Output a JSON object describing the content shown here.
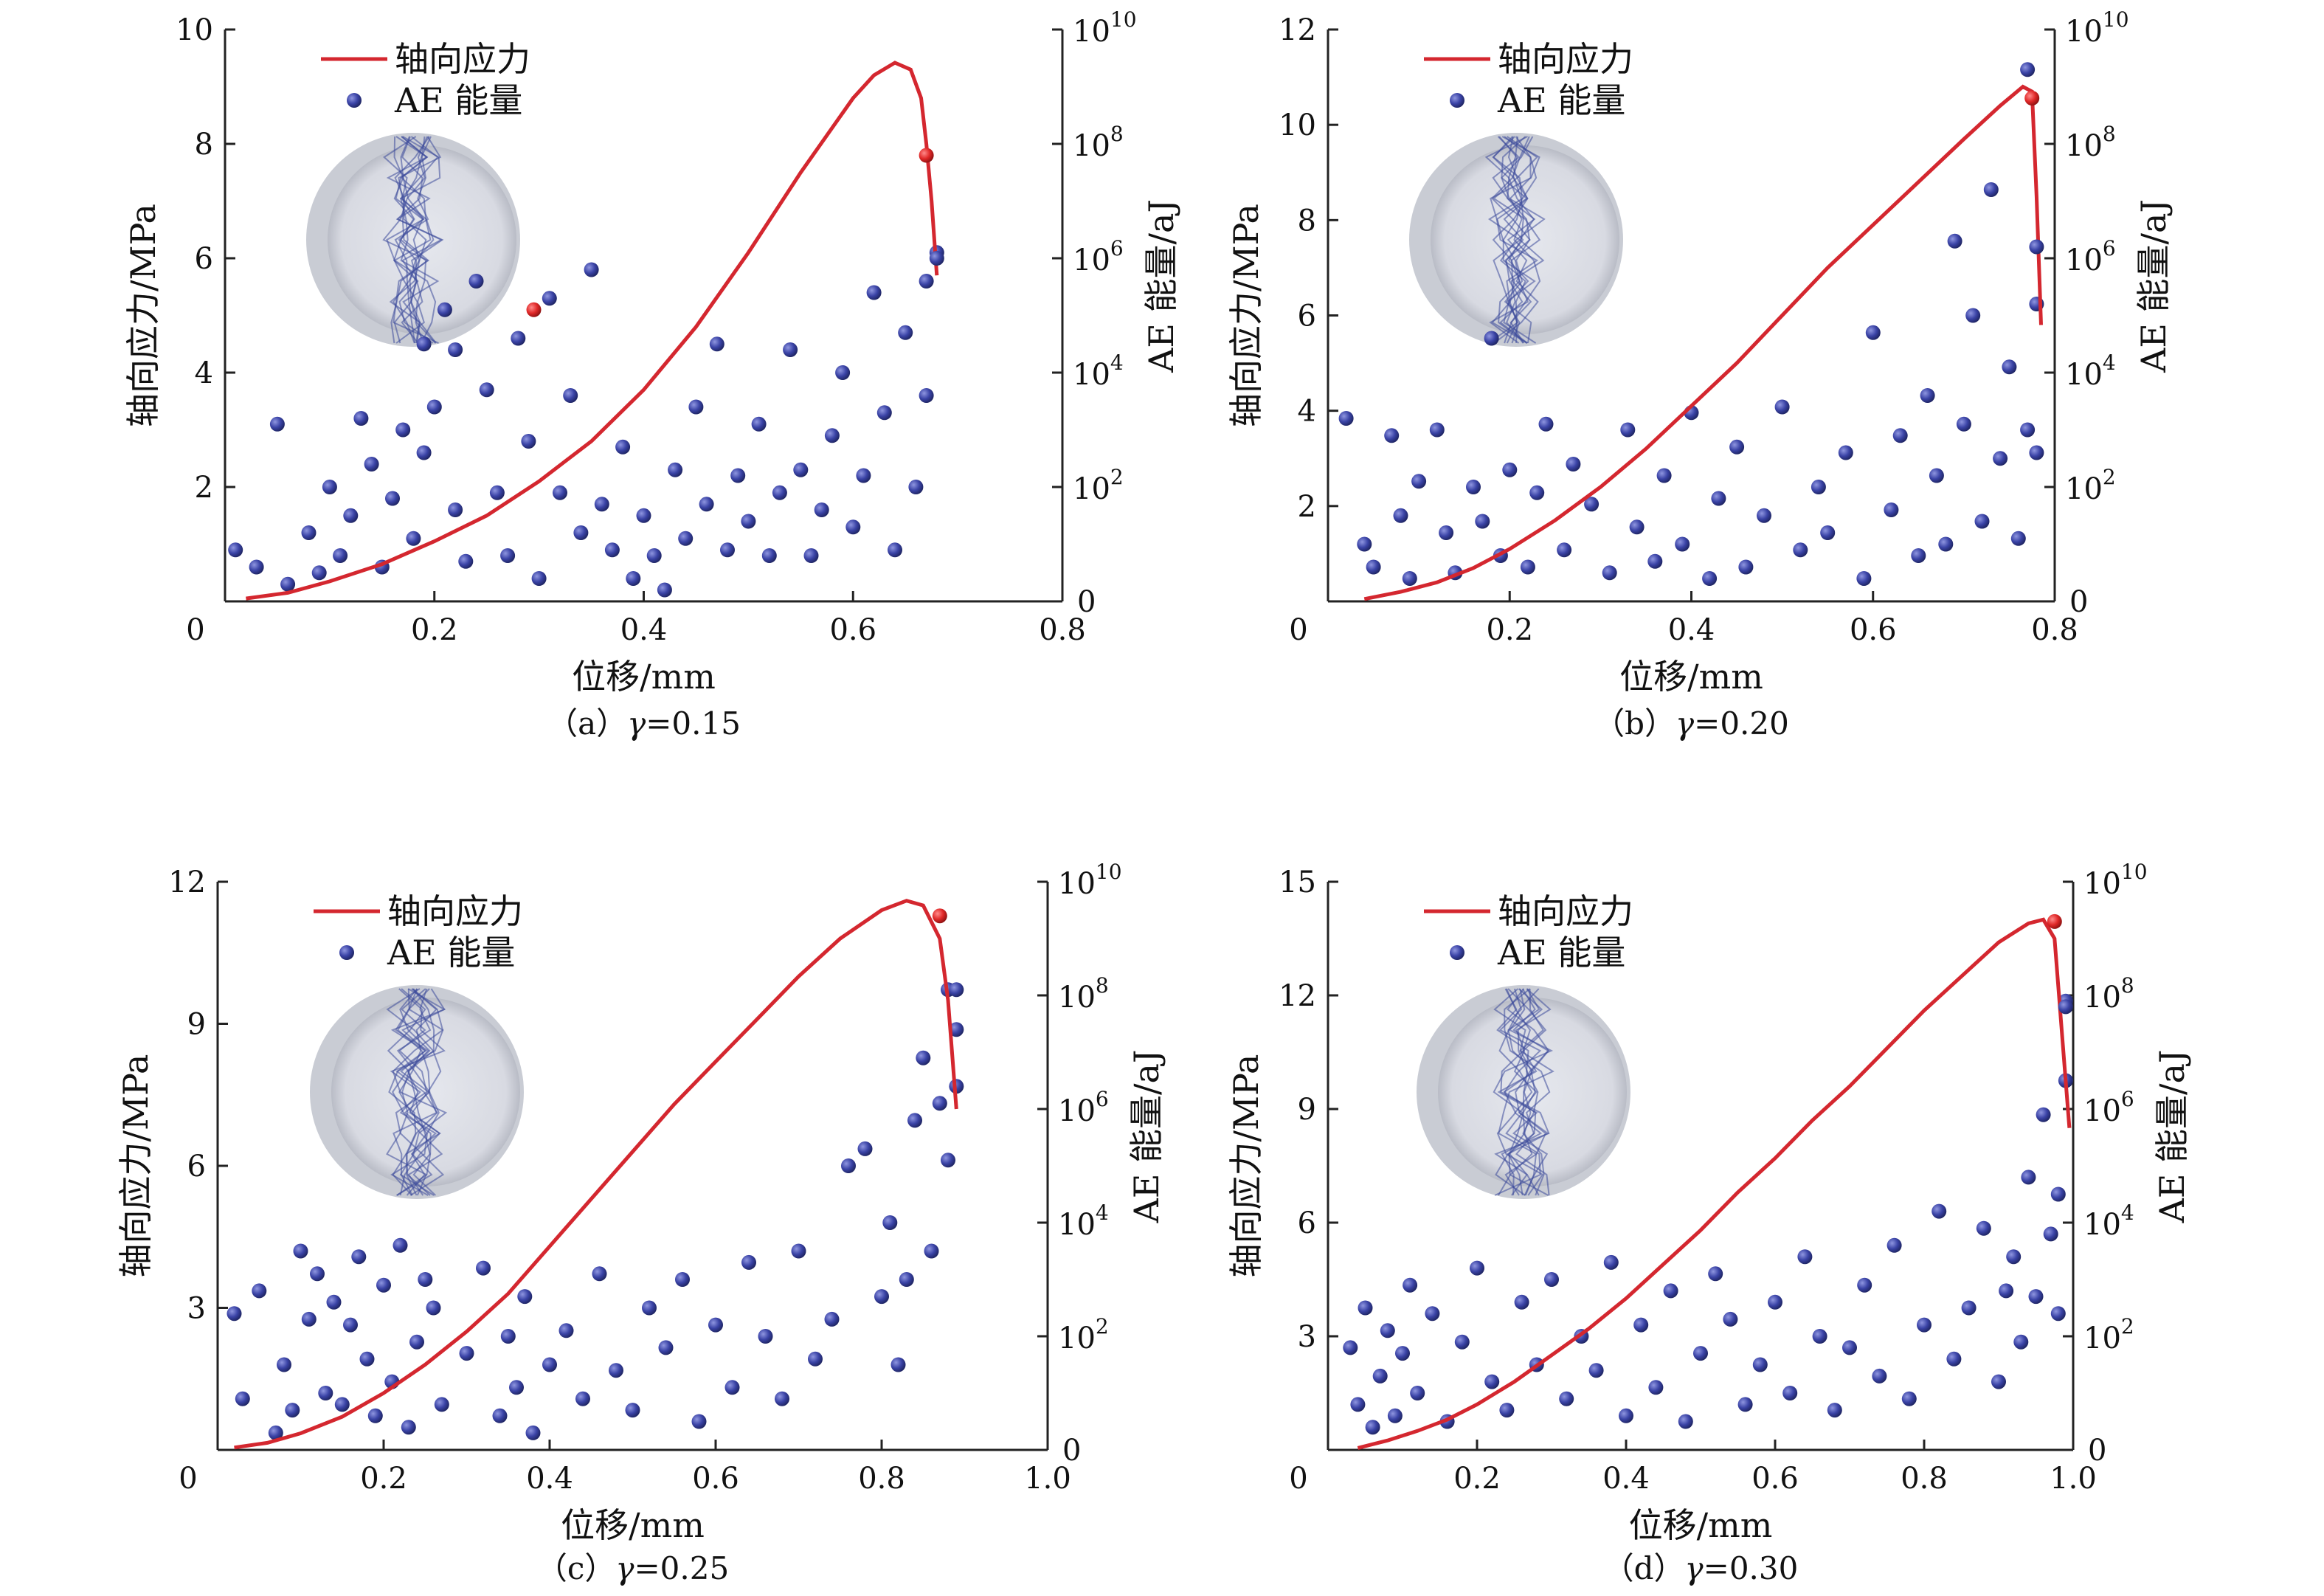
{
  "figure": {
    "panel_count": 4
  },
  "chart_data": [
    {
      "id": "a",
      "type": "line+scatter",
      "caption_prefix": "（a）",
      "caption_symbol": "γ",
      "caption_value": "=0.15",
      "xlabel": "位移/mm",
      "ylabel": "轴向应力/MPa",
      "ylabel_right": "AE 能量/aJ",
      "legend": [
        "轴向应力",
        "AE 能量"
      ],
      "xlim": [
        0,
        0.8
      ],
      "ylim": [
        0,
        10
      ],
      "xticks": [
        "0",
        "0.2",
        "0.4",
        "0.6",
        "0.8"
      ],
      "yticks": [
        "10",
        "8",
        "6",
        "4",
        "2"
      ],
      "y2_exponents": [
        "10",
        "8",
        "6",
        "4",
        "2"
      ],
      "y2_zero": "0",
      "y2lim_log10": [
        0,
        10
      ],
      "series": [
        {
          "name": "轴向应力",
          "type": "line",
          "color": "#d4272f",
          "x": [
            0.02,
            0.06,
            0.1,
            0.15,
            0.2,
            0.25,
            0.3,
            0.35,
            0.4,
            0.45,
            0.5,
            0.55,
            0.6,
            0.62,
            0.64,
            0.655,
            0.665,
            0.67,
            0.675,
            0.68
          ],
          "y": [
            0.05,
            0.15,
            0.35,
            0.65,
            1.05,
            1.5,
            2.1,
            2.8,
            3.7,
            4.8,
            6.1,
            7.5,
            8.8,
            9.2,
            9.42,
            9.3,
            8.8,
            8.0,
            7.0,
            5.7
          ]
        },
        {
          "name": "AE 能量",
          "type": "scatter",
          "color": "#3b449c",
          "unit": "log10(aJ)",
          "x": [
            0.01,
            0.03,
            0.05,
            0.06,
            0.08,
            0.09,
            0.1,
            0.11,
            0.12,
            0.13,
            0.14,
            0.15,
            0.16,
            0.17,
            0.18,
            0.19,
            0.19,
            0.2,
            0.21,
            0.22,
            0.22,
            0.23,
            0.24,
            0.25,
            0.26,
            0.27,
            0.28,
            0.29,
            0.3,
            0.31,
            0.32,
            0.33,
            0.34,
            0.35,
            0.36,
            0.37,
            0.38,
            0.39,
            0.4,
            0.41,
            0.42,
            0.43,
            0.44,
            0.45,
            0.46,
            0.47,
            0.48,
            0.49,
            0.5,
            0.51,
            0.52,
            0.53,
            0.54,
            0.55,
            0.56,
            0.57,
            0.58,
            0.59,
            0.6,
            0.61,
            0.62,
            0.63,
            0.64,
            0.65,
            0.66,
            0.67,
            0.67,
            0.68
          ],
          "y": [
            0.9,
            0.6,
            3.1,
            0.3,
            1.2,
            0.5,
            2.0,
            0.8,
            1.5,
            3.2,
            2.4,
            0.6,
            1.8,
            3.0,
            1.1,
            4.5,
            2.6,
            3.4,
            5.1,
            1.6,
            4.4,
            0.7,
            5.6,
            3.7,
            1.9,
            0.8,
            4.6,
            2.8,
            0.4,
            5.3,
            1.9,
            3.6,
            1.2,
            5.8,
            1.7,
            0.9,
            2.7,
            0.4,
            1.5,
            0.8,
            0.2,
            2.3,
            1.1,
            3.4,
            1.7,
            4.5,
            0.9,
            2.2,
            1.4,
            3.1,
            0.8,
            1.9,
            4.4,
            2.3,
            0.8,
            1.6,
            2.9,
            4.0,
            1.3,
            2.2,
            5.4,
            3.3,
            0.9,
            4.7,
            2.0,
            3.6,
            5.6,
            6.1
          ]
        }
      ],
      "highlight_points": [
        {
          "x": 0.295,
          "y2_log10": 5.1,
          "color": "#d4272f"
        },
        {
          "x": 0.67,
          "y2_log10": 7.8,
          "color": "#d4272f"
        },
        {
          "x": 0.68,
          "y2_log10": 6.0,
          "color": "#3b449c"
        }
      ]
    },
    {
      "id": "b",
      "type": "line+scatter",
      "caption_prefix": "（b）",
      "caption_symbol": "γ",
      "caption_value": "=0.20",
      "xlabel": "位移/mm",
      "ylabel": "轴向应力/MPa",
      "ylabel_right": "AE 能量/aJ",
      "legend": [
        "轴向应力",
        "AE 能量"
      ],
      "xlim": [
        0,
        0.8
      ],
      "ylim": [
        0,
        12
      ],
      "xticks": [
        "0",
        "0.2",
        "0.4",
        "0.6",
        "0.8"
      ],
      "yticks": [
        "12",
        "10",
        "8",
        "6",
        "4",
        "2"
      ],
      "y2_exponents": [
        "10",
        "8",
        "6",
        "4",
        "2"
      ],
      "y2_zero": "0",
      "y2lim_log10": [
        0,
        10
      ],
      "series": [
        {
          "name": "轴向应力",
          "type": "line",
          "color": "#d4272f",
          "x": [
            0.04,
            0.08,
            0.12,
            0.16,
            0.2,
            0.25,
            0.3,
            0.35,
            0.4,
            0.45,
            0.5,
            0.55,
            0.6,
            0.65,
            0.7,
            0.74,
            0.765,
            0.775,
            0.78,
            0.785
          ],
          "y": [
            0.05,
            0.2,
            0.4,
            0.7,
            1.1,
            1.7,
            2.4,
            3.2,
            4.1,
            5.0,
            6.0,
            7.0,
            7.9,
            8.8,
            9.7,
            10.4,
            10.8,
            10.7,
            8.5,
            5.8
          ]
        },
        {
          "name": "AE 能量",
          "type": "scatter",
          "color": "#3b449c",
          "unit": "log10(aJ)",
          "x": [
            0.02,
            0.04,
            0.05,
            0.07,
            0.08,
            0.09,
            0.1,
            0.12,
            0.13,
            0.14,
            0.16,
            0.17,
            0.18,
            0.19,
            0.2,
            0.22,
            0.23,
            0.24,
            0.26,
            0.27,
            0.29,
            0.31,
            0.33,
            0.34,
            0.36,
            0.37,
            0.39,
            0.4,
            0.42,
            0.43,
            0.45,
            0.46,
            0.48,
            0.5,
            0.52,
            0.54,
            0.55,
            0.57,
            0.59,
            0.6,
            0.62,
            0.63,
            0.65,
            0.66,
            0.67,
            0.68,
            0.69,
            0.7,
            0.71,
            0.72,
            0.73,
            0.74,
            0.75,
            0.76,
            0.77,
            0.77,
            0.78,
            0.78
          ],
          "y": [
            3.2,
            1.0,
            0.6,
            2.9,
            1.5,
            0.4,
            2.1,
            3.0,
            1.2,
            0.5,
            2.0,
            1.4,
            4.6,
            0.8,
            2.3,
            0.6,
            1.9,
            3.1,
            0.9,
            2.4,
            1.7,
            0.5,
            3.0,
            1.3,
            0.7,
            2.2,
            1.0,
            3.3,
            0.4,
            1.8,
            2.7,
            0.6,
            1.5,
            3.4,
            0.9,
            2.0,
            1.2,
            2.6,
            0.4,
            4.7,
            1.6,
            2.9,
            0.8,
            3.6,
            2.2,
            1.0,
            6.3,
            3.1,
            5.0,
            1.4,
            7.2,
            2.5,
            4.1,
            1.1,
            9.3,
            3.0,
            5.2,
            2.6
          ]
        }
      ],
      "highlight_points": [
        {
          "x": 0.775,
          "y2_log10": 8.8,
          "color": "#d4272f"
        },
        {
          "x": 0.78,
          "y2_log10": 6.2,
          "color": "#3b449c"
        }
      ]
    },
    {
      "id": "c",
      "type": "line+scatter",
      "caption_prefix": "（c）",
      "caption_symbol": "γ",
      "caption_value": "=0.25",
      "xlabel": "位移/mm",
      "ylabel": "轴向应力/MPa",
      "ylabel_right": "AE 能量/aJ",
      "legend": [
        "轴向应力",
        "AE 能量"
      ],
      "xlim": [
        0,
        1.0
      ],
      "ylim": [
        0,
        12
      ],
      "xticks": [
        "0",
        "0.2",
        "0.4",
        "0.6",
        "0.8",
        "1.0"
      ],
      "yticks": [
        "12",
        "9",
        "6",
        "3"
      ],
      "y2_exponents": [
        "10",
        "8",
        "6",
        "4",
        "2"
      ],
      "y2_zero": "0",
      "y2lim_log10": [
        0,
        10
      ],
      "series": [
        {
          "name": "轴向应力",
          "type": "line",
          "color": "#d4272f",
          "x": [
            0.02,
            0.06,
            0.1,
            0.15,
            0.2,
            0.25,
            0.3,
            0.35,
            0.4,
            0.45,
            0.5,
            0.55,
            0.6,
            0.65,
            0.7,
            0.75,
            0.8,
            0.83,
            0.85,
            0.87,
            0.88,
            0.89
          ],
          "y": [
            0.05,
            0.15,
            0.35,
            0.7,
            1.2,
            1.8,
            2.5,
            3.3,
            4.3,
            5.3,
            6.3,
            7.3,
            8.2,
            9.1,
            10.0,
            10.8,
            11.4,
            11.6,
            11.5,
            10.8,
            9.5,
            7.2
          ]
        },
        {
          "name": "AE 能量",
          "type": "scatter",
          "color": "#3b449c",
          "unit": "log10(aJ)",
          "x": [
            0.02,
            0.03,
            0.05,
            0.07,
            0.08,
            0.09,
            0.1,
            0.11,
            0.12,
            0.13,
            0.14,
            0.15,
            0.16,
            0.17,
            0.18,
            0.19,
            0.2,
            0.21,
            0.22,
            0.23,
            0.24,
            0.25,
            0.26,
            0.27,
            0.3,
            0.32,
            0.34,
            0.35,
            0.36,
            0.37,
            0.38,
            0.4,
            0.42,
            0.44,
            0.46,
            0.48,
            0.5,
            0.52,
            0.54,
            0.56,
            0.58,
            0.6,
            0.62,
            0.64,
            0.66,
            0.68,
            0.7,
            0.72,
            0.74,
            0.76,
            0.78,
            0.8,
            0.81,
            0.82,
            0.83,
            0.84,
            0.85,
            0.86,
            0.87,
            0.88,
            0.88,
            0.89,
            0.89
          ],
          "y": [
            2.4,
            0.9,
            2.8,
            0.3,
            1.5,
            0.7,
            3.5,
            2.3,
            3.1,
            1.0,
            2.6,
            0.8,
            2.2,
            3.4,
            1.6,
            0.6,
            2.9,
            1.2,
            3.6,
            0.4,
            1.9,
            3.0,
            2.5,
            0.8,
            1.7,
            3.2,
            0.6,
            2.0,
            1.1,
            2.7,
            0.3,
            1.5,
            2.1,
            0.9,
            3.1,
            1.4,
            0.7,
            2.5,
            1.8,
            3.0,
            0.5,
            2.2,
            1.1,
            3.3,
            2.0,
            0.9,
            3.5,
            1.6,
            2.3,
            5.0,
            5.3,
            2.7,
            4.0,
            1.5,
            3.0,
            5.8,
            6.9,
            3.5,
            6.1,
            5.1,
            8.1,
            7.4,
            6.4
          ]
        }
      ],
      "highlight_points": [
        {
          "x": 0.87,
          "y2_log10": 9.4,
          "color": "#d4272f"
        },
        {
          "x": 0.89,
          "y2_log10": 8.1,
          "color": "#3b449c"
        }
      ]
    },
    {
      "id": "d",
      "type": "line+scatter",
      "caption_prefix": "（d）",
      "caption_symbol": "γ",
      "caption_value": "=0.30",
      "xlabel": "位移/mm",
      "ylabel": "轴向应力/MPa",
      "ylabel_right": "AE 能量/aJ",
      "legend": [
        "轴向应力",
        "AE 能量"
      ],
      "xlim": [
        0,
        1.0
      ],
      "ylim": [
        0,
        15
      ],
      "xticks": [
        "0",
        "0.2",
        "0.4",
        "0.6",
        "0.8",
        "1.0"
      ],
      "yticks": [
        "15",
        "12",
        "9",
        "6",
        "3"
      ],
      "y2_exponents": [
        "10",
        "8",
        "6",
        "4",
        "2"
      ],
      "y2_zero": "0",
      "y2lim_log10": [
        0,
        10
      ],
      "series": [
        {
          "name": "轴向应力",
          "type": "line",
          "color": "#d4272f",
          "x": [
            0.04,
            0.08,
            0.12,
            0.16,
            0.2,
            0.25,
            0.3,
            0.35,
            0.4,
            0.45,
            0.5,
            0.55,
            0.6,
            0.65,
            0.7,
            0.75,
            0.8,
            0.85,
            0.9,
            0.94,
            0.96,
            0.975,
            0.985,
            0.995
          ],
          "y": [
            0.05,
            0.25,
            0.5,
            0.8,
            1.2,
            1.8,
            2.5,
            3.2,
            4.0,
            4.9,
            5.8,
            6.8,
            7.7,
            8.7,
            9.6,
            10.6,
            11.6,
            12.5,
            13.4,
            13.9,
            14.0,
            13.5,
            11.0,
            8.5
          ]
        },
        {
          "name": "AE 能量",
          "type": "scatter",
          "color": "#3b449c",
          "unit": "log10(aJ)",
          "x": [
            0.03,
            0.04,
            0.05,
            0.06,
            0.07,
            0.08,
            0.09,
            0.1,
            0.11,
            0.12,
            0.14,
            0.16,
            0.18,
            0.2,
            0.22,
            0.24,
            0.26,
            0.28,
            0.3,
            0.32,
            0.34,
            0.36,
            0.38,
            0.4,
            0.42,
            0.44,
            0.46,
            0.48,
            0.5,
            0.52,
            0.54,
            0.56,
            0.58,
            0.6,
            0.62,
            0.64,
            0.66,
            0.68,
            0.7,
            0.72,
            0.74,
            0.76,
            0.78,
            0.8,
            0.82,
            0.84,
            0.86,
            0.88,
            0.9,
            0.91,
            0.92,
            0.93,
            0.94,
            0.95,
            0.96,
            0.97,
            0.98,
            0.98,
            0.99,
            0.99
          ],
          "y": [
            1.8,
            0.8,
            2.5,
            0.4,
            1.3,
            2.1,
            0.6,
            1.7,
            2.9,
            1.0,
            2.4,
            0.5,
            1.9,
            3.2,
            1.2,
            0.7,
            2.6,
            1.5,
            3.0,
            0.9,
            2.0,
            1.4,
            3.3,
            0.6,
            2.2,
            1.1,
            2.8,
            0.5,
            1.7,
            3.1,
            2.3,
            0.8,
            1.5,
            2.6,
            1.0,
            3.4,
            2.0,
            0.7,
            1.8,
            2.9,
            1.3,
            3.6,
            0.9,
            2.2,
            4.2,
            1.6,
            2.5,
            3.9,
            1.2,
            2.8,
            3.4,
            1.9,
            4.8,
            2.7,
            5.9,
            3.8,
            4.5,
            2.4,
            7.9,
            6.5
          ]
        }
      ],
      "highlight_points": [
        {
          "x": 0.975,
          "y2_log10": 9.3,
          "color": "#d4272f"
        },
        {
          "x": 0.99,
          "y2_log10": 7.8,
          "color": "#3b449c"
        }
      ]
    }
  ]
}
